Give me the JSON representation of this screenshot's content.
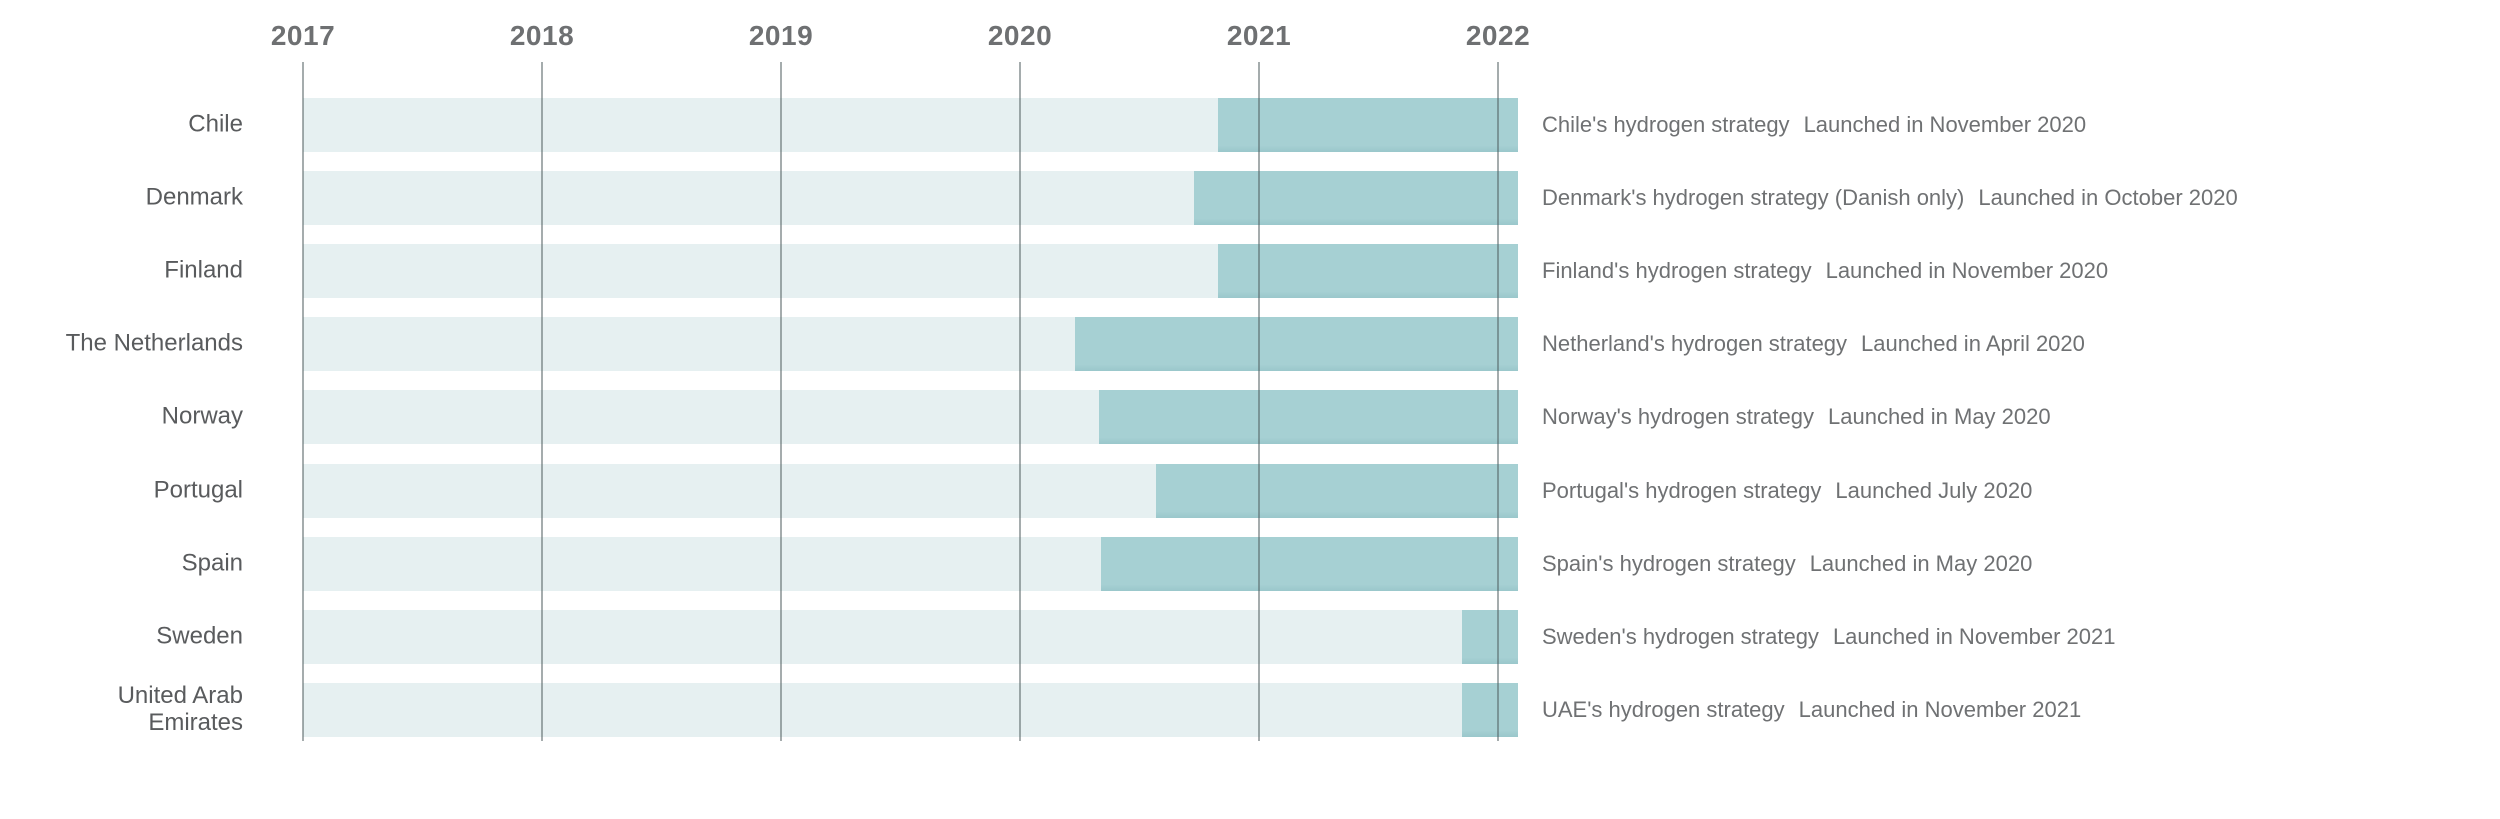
{
  "colors": {
    "bar": "#a6d0d3",
    "bar_edge": "#9ac7cb",
    "track": "#e6f0f1",
    "gridline": "#4b5a5c",
    "axis_text": "#6e7072",
    "label_text": "#595b5d",
    "annotation_text": "#6f7173"
  },
  "chart_data": {
    "type": "bar",
    "subtype": "gantt-timeline",
    "title": "",
    "xlabel": "",
    "ylabel": "",
    "x_domain": [
      2017,
      2022.08
    ],
    "x_ticks": [
      "2017",
      "2018",
      "2019",
      "2020",
      "2021",
      "2022"
    ],
    "grid": "vertical-year-lines",
    "legend": "none",
    "bar_end": 2022.08,
    "categories": [
      "Chile",
      "Denmark",
      "Finland",
      "The Netherlands",
      "Norway",
      "Portugal",
      "Spain",
      "Sweden",
      "United Arab Emirates"
    ],
    "rows": [
      {
        "country": "Chile",
        "start": 2020.83,
        "strategy": "Chile's hydrogen strategy",
        "launch": "Launched in November 2020"
      },
      {
        "country": "Denmark",
        "start": 2020.73,
        "strategy": "Denmark's hydrogen strategy (Danish only)",
        "launch": "Launched in October 2020"
      },
      {
        "country": "Finland",
        "start": 2020.83,
        "strategy": "Finland's hydrogen strategy",
        "launch": "Launched in November 2020"
      },
      {
        "country": "The Netherlands",
        "start": 2020.23,
        "strategy": "Netherland's hydrogen strategy",
        "launch": "Launched in April 2020"
      },
      {
        "country": "Norway",
        "start": 2020.33,
        "strategy": "Norway's hydrogen strategy",
        "launch": "Launched in May 2020"
      },
      {
        "country": "Portugal",
        "start": 2020.57,
        "strategy": "Portugal's hydrogen strategy",
        "launch": "Launched July 2020"
      },
      {
        "country": "Spain",
        "start": 2020.34,
        "strategy": "Spain's hydrogen strategy",
        "launch": "Launched in May 2020"
      },
      {
        "country": "Sweden",
        "start": 2021.85,
        "strategy": "Sweden's hydrogen strategy",
        "launch": "Launched in November 2021"
      },
      {
        "country": "United Arab Emirates",
        "start": 2021.85,
        "strategy": "UAE's hydrogen strategy",
        "launch": "Launched in November 2021"
      }
    ]
  }
}
